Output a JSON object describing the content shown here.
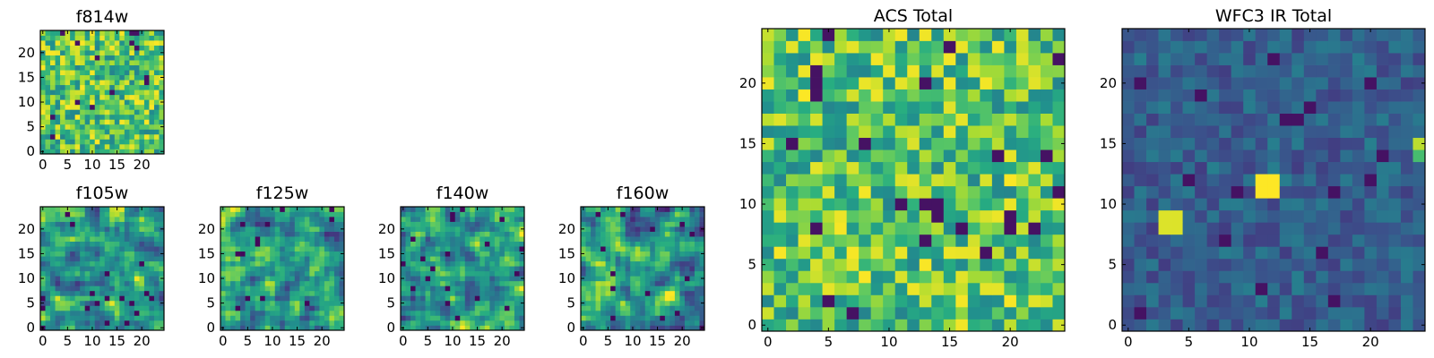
{
  "chart_data": [
    {
      "type": "heatmap",
      "title": "f814w",
      "grid_size": 25,
      "x_ticks": [
        0,
        5,
        10,
        15,
        20
      ],
      "y_ticks": [
        0,
        5,
        10,
        15,
        20
      ],
      "xlim": [
        -0.5,
        24.5
      ],
      "ylim": [
        -0.5,
        24.5
      ],
      "colormap": "viridis",
      "dominant_color": "#a2d429",
      "seed": 11,
      "profile": "noise"
    },
    {
      "type": "heatmap",
      "title": "f105w",
      "grid_size": 25,
      "x_ticks": [
        0,
        5,
        10,
        15,
        20
      ],
      "y_ticks": [
        0,
        5,
        10,
        15,
        20
      ],
      "xlim": [
        -0.5,
        24.5
      ],
      "ylim": [
        -0.5,
        24.5
      ],
      "colormap": "viridis",
      "dominant_color": "#a2d429",
      "seed": 23,
      "profile": "smooth"
    },
    {
      "type": "heatmap",
      "title": "f125w",
      "grid_size": 25,
      "x_ticks": [
        0,
        5,
        10,
        15,
        20
      ],
      "y_ticks": [
        0,
        5,
        10,
        15,
        20
      ],
      "xlim": [
        -0.5,
        24.5
      ],
      "ylim": [
        -0.5,
        24.5
      ],
      "colormap": "viridis",
      "dominant_color": "#a2d429",
      "seed": 37,
      "profile": "smooth"
    },
    {
      "type": "heatmap",
      "title": "f140w",
      "grid_size": 25,
      "x_ticks": [
        0,
        5,
        10,
        15,
        20
      ],
      "y_ticks": [
        0,
        5,
        10,
        15,
        20
      ],
      "xlim": [
        -0.5,
        24.5
      ],
      "ylim": [
        -0.5,
        24.5
      ],
      "colormap": "viridis",
      "dominant_color": "#c8e020",
      "seed": 41,
      "profile": "smooth"
    },
    {
      "type": "heatmap",
      "title": "f160w",
      "grid_size": 25,
      "x_ticks": [
        0,
        5,
        10,
        15,
        20
      ],
      "y_ticks": [
        0,
        5,
        10,
        15,
        20
      ],
      "xlim": [
        -0.5,
        24.5
      ],
      "ylim": [
        -0.5,
        24.5
      ],
      "colormap": "viridis",
      "dominant_color": "#c8e020",
      "seed": 53,
      "profile": "smooth"
    },
    {
      "type": "heatmap",
      "title": "ACS Total",
      "grid_size": 25,
      "x_ticks": [
        0,
        5,
        10,
        15,
        20
      ],
      "y_ticks": [
        0,
        5,
        10,
        15,
        20
      ],
      "xlim": [
        -0.5,
        24.5
      ],
      "ylim": [
        -0.5,
        24.5
      ],
      "colormap": "viridis",
      "dominant_color": "#a2d429",
      "seed": 67,
      "profile": "noise"
    },
    {
      "type": "heatmap",
      "title": "WFC3 IR Total",
      "grid_size": 25,
      "x_ticks": [
        0,
        5,
        10,
        15,
        20
      ],
      "y_ticks": [
        0,
        5,
        10,
        15,
        20
      ],
      "xlim": [
        -0.5,
        24.5
      ],
      "ylim": [
        -0.5,
        24.5
      ],
      "colormap": "viridis",
      "dominant_color": "#2f6c8e",
      "seed": 79,
      "profile": "dark",
      "bright_spots": [
        {
          "x": 11,
          "y": 11,
          "value": 1.0
        },
        {
          "x": 12,
          "y": 11,
          "value": 1.0
        },
        {
          "x": 11,
          "y": 12,
          "value": 1.0
        },
        {
          "x": 12,
          "y": 12,
          "value": 1.0
        },
        {
          "x": 3,
          "y": 8,
          "value": 0.95
        },
        {
          "x": 4,
          "y": 8,
          "value": 0.95
        },
        {
          "x": 3,
          "y": 9,
          "value": 0.95
        },
        {
          "x": 4,
          "y": 9,
          "value": 0.95
        },
        {
          "x": 24,
          "y": 15,
          "value": 0.9
        },
        {
          "x": 24,
          "y": 14,
          "value": 0.7
        }
      ]
    }
  ]
}
